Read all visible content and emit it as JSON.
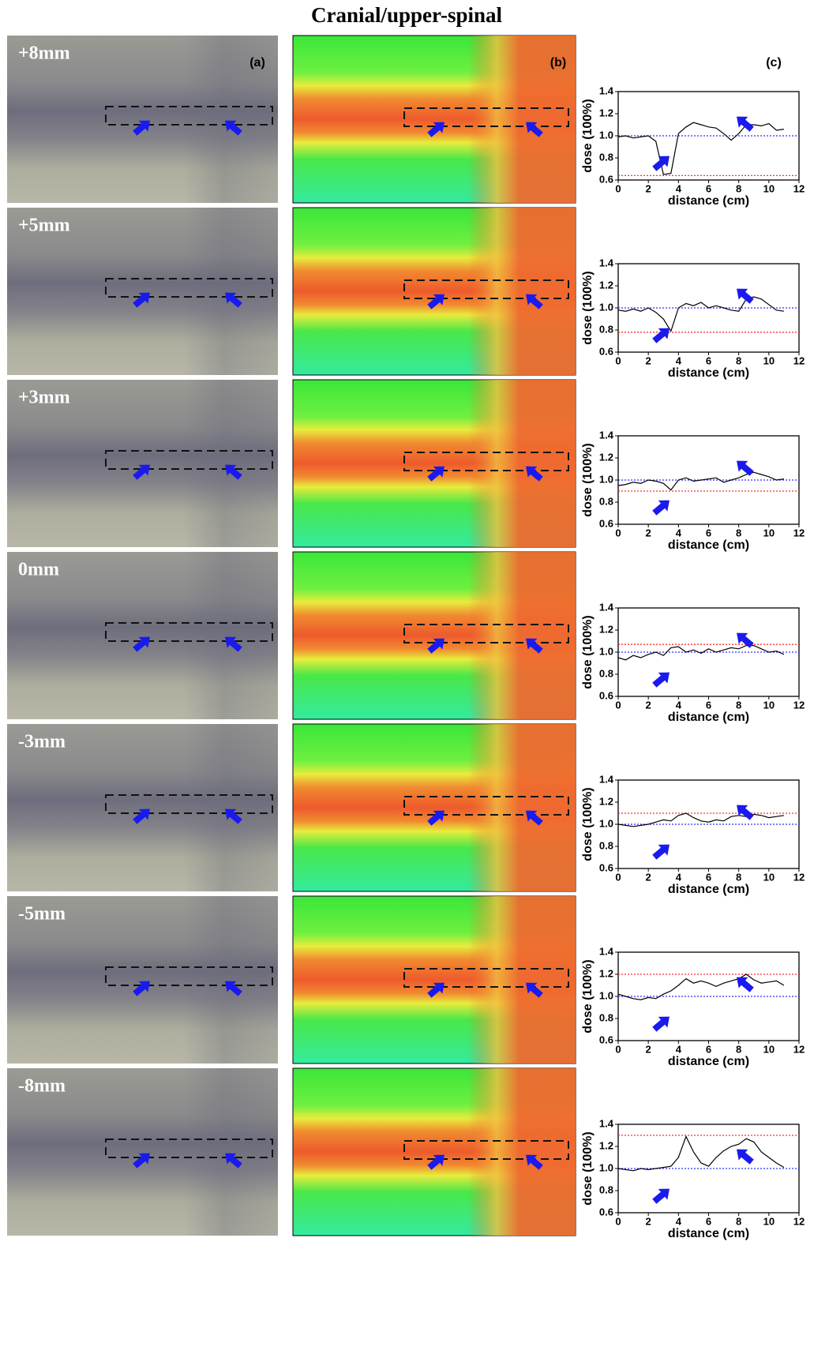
{
  "figure_title": "Cranial/upper-spinal",
  "panel_labels": [
    "(a)",
    "(b)",
    "(c)"
  ],
  "chart_data": [
    {
      "type": "line",
      "row_label": "+8mm",
      "x_label": "distance (cm)",
      "y_label": "dose (100%)",
      "color": "#000000",
      "xlim": [
        0,
        12
      ],
      "xticks": [
        0,
        2,
        4,
        6,
        8,
        10,
        12
      ],
      "ylim": [
        0.6,
        1.4
      ],
      "yticks": [
        0.6,
        0.8,
        {
          "value": 1,
          "label": "1.0"
        },
        1.2,
        1.4
      ],
      "x": [
        0,
        0.5,
        1,
        1.5,
        2,
        2.5,
        3,
        3.5,
        4,
        4.5,
        5,
        5.5,
        6,
        6.5,
        7,
        7.5,
        8,
        8.5,
        9,
        9.5,
        10,
        10.5,
        11
      ],
      "values": [
        0.99,
        1.0,
        0.98,
        0.99,
        1.0,
        0.95,
        0.65,
        0.66,
        1.02,
        1.08,
        1.12,
        1.1,
        1.08,
        1.07,
        1.02,
        0.96,
        1.02,
        1.1,
        1.1,
        1.09,
        1.11,
        1.05,
        1.06
      ],
      "hlines": [
        {
          "value": 1,
          "color": "#2f2fff"
        },
        {
          "value": 0.64,
          "color": "#ff2f2f"
        }
      ]
    },
    {
      "type": "line",
      "row_label": "+5mm",
      "x_label": "distance (cm)",
      "y_label": "dose (100%)",
      "color": "#000000",
      "xlim": [
        0,
        12
      ],
      "xticks": [
        0,
        2,
        4,
        6,
        8,
        10,
        12
      ],
      "ylim": [
        0.6,
        1.4
      ],
      "yticks": [
        0.6,
        0.8,
        {
          "value": 1,
          "label": "1.0"
        },
        1.2,
        1.4
      ],
      "x": [
        0,
        0.5,
        1,
        1.5,
        2,
        2.5,
        3,
        3.5,
        4,
        4.5,
        5,
        5.5,
        6,
        6.5,
        7,
        7.5,
        8,
        8.5,
        9,
        9.5,
        10,
        10.5,
        11
      ],
      "values": [
        0.98,
        0.97,
        0.99,
        0.97,
        1.0,
        0.96,
        0.9,
        0.79,
        1.0,
        1.04,
        1.02,
        1.05,
        1.0,
        1.02,
        1.0,
        0.98,
        0.97,
        1.08,
        1.1,
        1.08,
        1.03,
        0.98,
        0.97
      ],
      "hlines": [
        {
          "value": 1,
          "color": "#2f2fff"
        },
        {
          "value": 0.78,
          "color": "#ff2f2f"
        }
      ]
    },
    {
      "type": "line",
      "row_label": "+3mm",
      "x_label": "distance (cm)",
      "y_label": "dose (100%)",
      "color": "#000000",
      "xlim": [
        0,
        12
      ],
      "xticks": [
        0,
        2,
        4,
        6,
        8,
        10,
        12
      ],
      "ylim": [
        0.6,
        1.4
      ],
      "yticks": [
        0.6,
        0.8,
        {
          "value": 1,
          "label": "1.0"
        },
        1.2,
        1.4
      ],
      "x": [
        0,
        0.5,
        1,
        1.5,
        2,
        2.5,
        3,
        3.5,
        4,
        4.5,
        5,
        5.5,
        6,
        6.5,
        7,
        7.5,
        8,
        8.5,
        9,
        9.5,
        10,
        10.5,
        11
      ],
      "values": [
        0.95,
        0.96,
        0.98,
        0.97,
        1.0,
        0.99,
        0.97,
        0.91,
        1.0,
        1.02,
        0.99,
        1.0,
        1.01,
        1.02,
        0.98,
        1.0,
        1.02,
        1.05,
        1.07,
        1.05,
        1.03,
        1.0,
        1.01
      ],
      "hlines": [
        {
          "value": 1,
          "color": "#2f2fff"
        },
        {
          "value": 0.9,
          "color": "#ff2f2f"
        }
      ]
    },
    {
      "type": "line",
      "row_label": "0mm",
      "x_label": "distance (cm)",
      "y_label": "dose (100%)",
      "color": "#000000",
      "xlim": [
        0,
        12
      ],
      "xticks": [
        0,
        2,
        4,
        6,
        8,
        10,
        12
      ],
      "ylim": [
        0.6,
        1.4
      ],
      "yticks": [
        0.6,
        0.8,
        {
          "value": 1,
          "label": "1.0"
        },
        1.2,
        1.4
      ],
      "x": [
        0,
        0.5,
        1,
        1.5,
        2,
        2.5,
        3,
        3.5,
        4,
        4.5,
        5,
        5.5,
        6,
        6.5,
        7,
        7.5,
        8,
        8.5,
        9,
        9.5,
        10,
        10.5,
        11
      ],
      "values": [
        0.95,
        0.93,
        0.97,
        0.95,
        0.98,
        1.0,
        0.97,
        1.04,
        1.05,
        1.0,
        1.02,
        0.99,
        1.03,
        1.0,
        1.02,
        1.04,
        1.03,
        1.06,
        1.06,
        1.03,
        1.0,
        1.01,
        0.98
      ],
      "hlines": [
        {
          "value": 1,
          "color": "#2f2fff"
        },
        {
          "value": 1.07,
          "color": "#ff2f2f"
        }
      ]
    },
    {
      "type": "line",
      "row_label": "-3mm",
      "x_label": "distance (cm)",
      "y_label": "dose (100%)",
      "color": "#000000",
      "xlim": [
        0,
        12
      ],
      "xticks": [
        0,
        2,
        4,
        6,
        8,
        10,
        12
      ],
      "ylim": [
        0.6,
        1.4
      ],
      "yticks": [
        0.6,
        0.8,
        {
          "value": 1,
          "label": "1.0"
        },
        1.2,
        1.4
      ],
      "x": [
        0,
        0.5,
        1,
        1.5,
        2,
        2.5,
        3,
        3.5,
        4,
        4.5,
        5,
        5.5,
        6,
        6.5,
        7,
        7.5,
        8,
        8.5,
        9,
        9.5,
        10,
        10.5,
        11
      ],
      "values": [
        1.0,
        0.99,
        0.98,
        0.99,
        1.0,
        1.02,
        1.04,
        1.03,
        1.08,
        1.1,
        1.06,
        1.03,
        1.02,
        1.04,
        1.03,
        1.07,
        1.08,
        1.07,
        1.09,
        1.08,
        1.06,
        1.07,
        1.08
      ],
      "hlines": [
        {
          "value": 1,
          "color": "#2f2fff"
        },
        {
          "value": 1.1,
          "color": "#ff2f2f"
        }
      ]
    },
    {
      "type": "line",
      "row_label": "-5mm",
      "x_label": "distance (cm)",
      "y_label": "dose (100%)",
      "color": "#000000",
      "xlim": [
        0,
        12
      ],
      "xticks": [
        0,
        2,
        4,
        6,
        8,
        10,
        12
      ],
      "ylim": [
        0.6,
        1.4
      ],
      "yticks": [
        0.6,
        0.8,
        {
          "value": 1,
          "label": "1.0"
        },
        1.2,
        1.4
      ],
      "x": [
        0,
        0.5,
        1,
        1.5,
        2,
        2.5,
        3,
        3.5,
        4,
        4.5,
        5,
        5.5,
        6,
        6.5,
        7,
        7.5,
        8,
        8.5,
        9,
        9.5,
        10,
        10.5,
        11
      ],
      "values": [
        1.02,
        1.0,
        0.98,
        0.97,
        0.99,
        0.98,
        1.02,
        1.05,
        1.1,
        1.16,
        1.12,
        1.14,
        1.12,
        1.09,
        1.12,
        1.14,
        1.16,
        1.2,
        1.15,
        1.12,
        1.13,
        1.14,
        1.1
      ],
      "hlines": [
        {
          "value": 1,
          "color": "#2f2fff"
        },
        {
          "value": 1.2,
          "color": "#ff2f2f"
        }
      ]
    },
    {
      "type": "line",
      "row_label": "-8mm",
      "x_label": "distance (cm)",
      "y_label": "dose (100%)",
      "color": "#000000",
      "xlim": [
        0,
        12
      ],
      "xticks": [
        0,
        2,
        4,
        6,
        8,
        10,
        12
      ],
      "ylim": [
        0.6,
        1.4
      ],
      "yticks": [
        0.6,
        0.8,
        {
          "value": 1,
          "label": "1.0"
        },
        1.2,
        1.4
      ],
      "x": [
        0,
        0.5,
        1,
        1.5,
        2,
        2.5,
        3,
        3.5,
        4,
        4.5,
        5,
        5.5,
        6,
        6.5,
        7,
        7.5,
        8,
        8.5,
        9,
        9.5,
        10,
        10.5,
        11
      ],
      "values": [
        1.0,
        0.99,
        0.98,
        1.0,
        0.99,
        1.0,
        1.01,
        1.02,
        1.1,
        1.29,
        1.15,
        1.05,
        1.02,
        1.1,
        1.16,
        1.2,
        1.22,
        1.27,
        1.24,
        1.15,
        1.1,
        1.05,
        1.01
      ],
      "hlines": [
        {
          "value": 1,
          "color": "#2f2fff"
        },
        {
          "value": 1.3,
          "color": "#ff2f2f"
        }
      ]
    }
  ]
}
